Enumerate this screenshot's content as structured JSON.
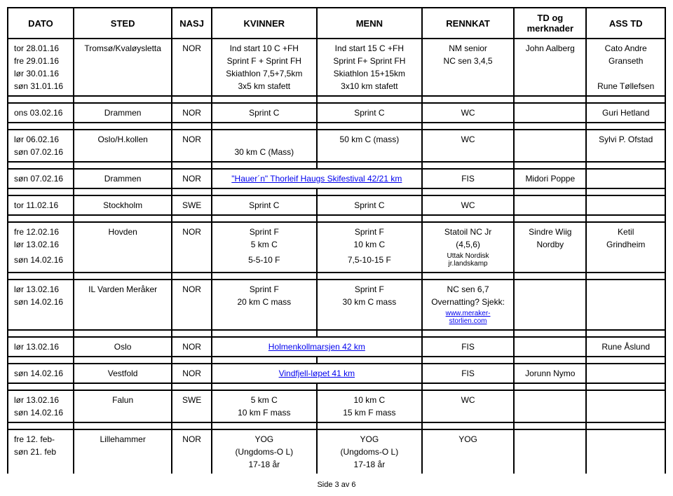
{
  "headers": {
    "dato": "DATO",
    "sted": "STED",
    "nasj": "NASJ",
    "kvinner": "KVINNER",
    "menn": "MENN",
    "rennkat": "RENNKAT",
    "td": "TD og merknader",
    "asstd": "ASS TD"
  },
  "groups": [
    {
      "rows": [
        {
          "dato": "tor 28.01.16",
          "sted": "Tromsø/Kvaløysletta",
          "nasj": "NOR",
          "kvinner": "Ind start 10 C +FH",
          "menn": "Ind start 15 C +FH",
          "rennkat": "NM senior",
          "td": "John Aalberg",
          "asstd": "Cato Andre"
        },
        {
          "dato": "fre 29.01.16",
          "sted": "",
          "nasj": "",
          "kvinner": "Sprint F + Sprint FH",
          "menn": "Sprint F+ Sprint FH",
          "rennkat": "NC sen 3,4,5",
          "td": "",
          "asstd": "Granseth"
        },
        {
          "dato": "lør 30.01.16",
          "sted": "",
          "nasj": "",
          "kvinner": "Skiathlon 7,5+7,5km",
          "menn": "Skiathlon 15+15km",
          "rennkat": "",
          "td": "",
          "asstd": ""
        },
        {
          "dato": "søn 31.01.16",
          "sted": "",
          "nasj": "",
          "kvinner": "3x5 km stafett",
          "menn": "3x10 km stafett",
          "rennkat": "",
          "td": "",
          "asstd": "Rune Tøllefsen"
        }
      ]
    },
    {
      "rows": [
        {
          "dato": "ons 03.02.16",
          "sted": "Drammen",
          "nasj": "NOR",
          "kvinner": "Sprint C",
          "menn": "Sprint C",
          "rennkat": "WC",
          "td": "",
          "asstd": "Guri Hetland"
        }
      ]
    },
    {
      "rows": [
        {
          "dato": "lør 06.02.16",
          "sted": "Oslo/H.kollen",
          "nasj": "NOR",
          "kvinner": "",
          "menn": "50 km C (mass)",
          "rennkat": "WC",
          "td": "",
          "asstd": "Sylvi P. Ofstad"
        },
        {
          "dato": "søn 07.02.16",
          "sted": "",
          "nasj": "",
          "kvinner": "30 km C (Mass)",
          "menn": "",
          "rennkat": "",
          "td": "",
          "asstd": ""
        }
      ]
    },
    {
      "rows": [
        {
          "dato": "søn 07.02.16",
          "sted": "Drammen",
          "nasj": "NOR",
          "kvinner": "",
          "menn": "",
          "span_link": "\"Hauer´n\" Thorleif Haugs Skifestival 42/21 km",
          "rennkat": "FIS",
          "td": "Midori Poppe",
          "asstd": ""
        }
      ]
    },
    {
      "rows": [
        {
          "dato": "tor 11.02.16",
          "sted": "Stockholm",
          "nasj": "SWE",
          "kvinner": "Sprint C",
          "menn": "Sprint C",
          "rennkat": "WC",
          "td": "",
          "asstd": ""
        }
      ]
    },
    {
      "rows": [
        {
          "dato": "fre 12.02.16",
          "sted": "Hovden",
          "nasj": "NOR",
          "kvinner": "Sprint F",
          "menn": "Sprint F",
          "rennkat": "Statoil NC Jr",
          "td": "Sindre Wiig",
          "asstd": "Ketil"
        },
        {
          "dato": "lør 13.02.16",
          "sted": "",
          "nasj": "",
          "kvinner": "5 km C",
          "menn": "10 km C",
          "rennkat": "(4,5,6)",
          "td": "Nordby",
          "asstd": "Grindheim"
        },
        {
          "dato": "søn 14.02.16",
          "sted": "",
          "nasj": "",
          "kvinner": "5-5-10 F",
          "menn": "7,5-10-15 F",
          "rennkat": "Uttak Nordisk jr.landskamp",
          "rennkat_small": true,
          "td": "",
          "asstd": ""
        }
      ]
    },
    {
      "rows": [
        {
          "dato": "lør 13.02.16",
          "sted": "IL Varden Meråker",
          "nasj": "NOR",
          "kvinner": "Sprint F",
          "menn": "Sprint F",
          "rennkat": "NC sen 6,7",
          "td": "",
          "asstd": ""
        },
        {
          "dato": "søn 14.02.16",
          "sted": "",
          "nasj": "",
          "kvinner": "20 km C mass",
          "menn": "30 km C mass",
          "rennkat": "Overnatting? Sjekk:",
          "td": "",
          "asstd": ""
        },
        {
          "dato": "",
          "sted": "",
          "nasj": "",
          "kvinner": "",
          "menn": "",
          "rennkat": "www.meraker-storlien.com",
          "rennkat_link": true,
          "rennkat_small": true,
          "td": "",
          "asstd": ""
        }
      ]
    },
    {
      "rows": [
        {
          "dato": "lør 13.02.16",
          "sted": "Oslo",
          "nasj": "NOR",
          "kvinner": "",
          "menn": "",
          "span_link": "Holmenkollmarsjen 42 km",
          "rennkat": "FIS",
          "td": "",
          "asstd": "Rune Åslund"
        }
      ]
    },
    {
      "rows": [
        {
          "dato": "søn 14.02.16",
          "sted": "Vestfold",
          "nasj": "NOR",
          "kvinner": "",
          "menn": "",
          "span_link": "Vindfjell-løpet 41 km",
          "rennkat": "FIS",
          "td": "Jorunn Nymo",
          "asstd": ""
        }
      ]
    },
    {
      "rows": [
        {
          "dato": "lør 13.02.16",
          "sted": "Falun",
          "nasj": "SWE",
          "kvinner": "5 km C",
          "menn": "10 km C",
          "rennkat": "WC",
          "td": "",
          "asstd": ""
        },
        {
          "dato": "søn 14.02.16",
          "sted": "",
          "nasj": "",
          "kvinner": "10 km F mass",
          "menn": "15 km F mass",
          "rennkat": "",
          "td": "",
          "asstd": ""
        }
      ]
    },
    {
      "rows": [
        {
          "dato": "fre 12. feb-",
          "sted": "Lillehammer",
          "nasj": "NOR",
          "kvinner": "YOG",
          "menn": "YOG",
          "rennkat": "YOG",
          "td": "",
          "asstd": ""
        },
        {
          "dato": "søn 21. feb",
          "sted": "",
          "nasj": "",
          "kvinner": "(Ungdoms-O L)",
          "menn": "(Ungdoms-O L)",
          "rennkat": "",
          "td": "",
          "asstd": ""
        },
        {
          "dato": "",
          "sted": "",
          "nasj": "",
          "kvinner": "17-18 år",
          "menn": "17-18 år",
          "rennkat": "",
          "td": "",
          "asstd": ""
        }
      ]
    }
  ],
  "footer": "Side 3 av 6"
}
